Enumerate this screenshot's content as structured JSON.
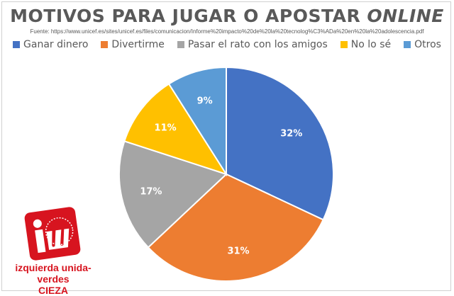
{
  "chart_data": {
    "type": "pie",
    "title_main": "MOTIVOS PARA JUGAR O APOSTAR",
    "title_italic": "ONLINE",
    "subtitle": "Fuente: https://www.unicef.es/sites/unicef.es/files/comunicacion/Informe%20impacto%20de%20la%20tecnolog%C3%ADa%20en%20la%20adolescencia.pdf",
    "legend_placement": "top",
    "slices": [
      {
        "label": "Ganar dinero",
        "value": 32,
        "data_label": "32%",
        "color": "#4472C4"
      },
      {
        "label": "Divertirme",
        "value": 31,
        "data_label": "31%",
        "color": "#ED7D31"
      },
      {
        "label": "Pasar el rato con los amigos",
        "value": 17,
        "data_label": "17%",
        "color": "#A5A5A5"
      },
      {
        "label": "No lo sé",
        "value": 11,
        "data_label": "11%",
        "color": "#FFC000"
      },
      {
        "label": "Otros",
        "value": 9,
        "data_label": "9%",
        "color": "#5B9BD5"
      }
    ]
  },
  "logo": {
    "mark": "iu",
    "line1": "izquierda unida-verdes",
    "line2": "CIEZA",
    "color": "#D7141F"
  }
}
